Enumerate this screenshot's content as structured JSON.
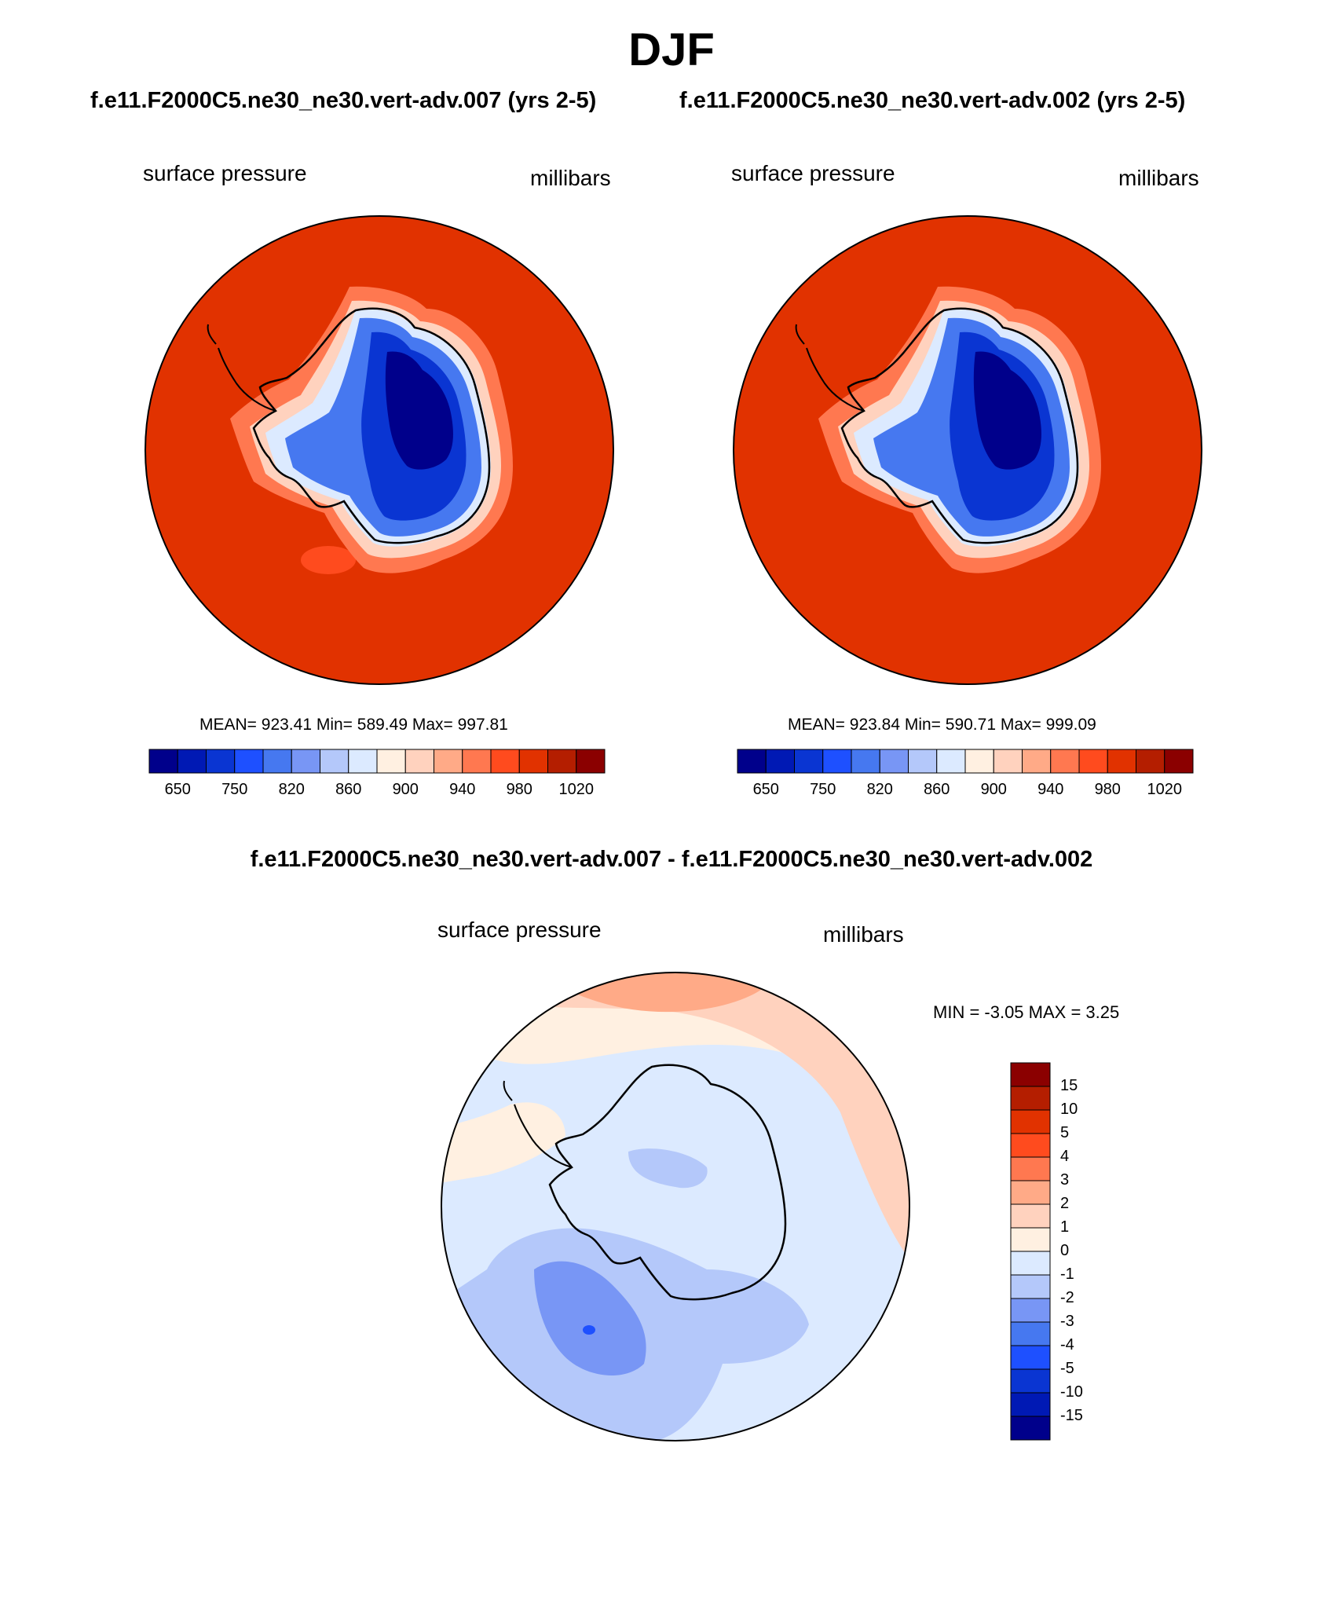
{
  "season": "DJF",
  "panels": [
    {
      "case_title": "f.e11.F2000C5.ne30_ne30.vert-adv.007 (yrs 2-5)",
      "variable": "surface pressure",
      "units": "millibars",
      "stats": "MEAN= 923.41  Min= 589.49  Max= 997.81"
    },
    {
      "case_title": "f.e11.F2000C5.ne30_ne30.vert-adv.002 (yrs 2-5)",
      "variable": "surface pressure",
      "units": "millibars",
      "stats": "MEAN= 923.84  Min= 590.71  Max= 999.09"
    }
  ],
  "colorbar": {
    "colors": [
      "#00008b",
      "#0019b4",
      "#0a35d2",
      "#1e50ff",
      "#4678f0",
      "#7896f5",
      "#b4c8fa",
      "#dceaff",
      "#fff0e1",
      "#ffd2be",
      "#ffaa87",
      "#ff7850",
      "#ff4b1e",
      "#e13200",
      "#b41e00",
      "#8b0000"
    ],
    "labels": [
      "650",
      "750",
      "820",
      "860",
      "900",
      "940",
      "980",
      "1020"
    ]
  },
  "difference": {
    "title": "f.e11.F2000C5.ne30_ne30.vert-adv.007 - f.e11.F2000C5.ne30_ne30.vert-adv.002",
    "variable": "surface pressure",
    "units": "millibars",
    "minmax": "MIN =  -3.05 MAX =   3.25",
    "colors": [
      "#8b0000",
      "#b41e00",
      "#e13200",
      "#ff4b1e",
      "#ff7850",
      "#ffaa87",
      "#ffd2be",
      "#fff0e1",
      "#dceaff",
      "#b4c8fa",
      "#7896f5",
      "#4678f0",
      "#1e50ff",
      "#0a35d2",
      "#0019b4",
      "#00008b"
    ],
    "labels": [
      "15",
      "10",
      "5",
      "4",
      "3",
      "2",
      "1",
      "0",
      "-1",
      "-2",
      "-3",
      "-4",
      "-5",
      "-10",
      "-15"
    ]
  }
}
